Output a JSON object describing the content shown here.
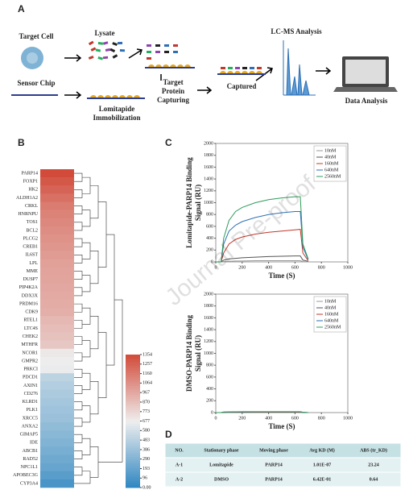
{
  "panel_a": {
    "letter": "A",
    "target_cell": "Target Cell",
    "lysate": "Lysate",
    "lcms": "LC-MS Analysis",
    "sensor_chip": "Sensor Chip",
    "immobilization": [
      "Lomitapide",
      "Immobilization"
    ],
    "capturing": [
      "Target",
      "Protein",
      "Capturing"
    ],
    "captured": "Captured",
    "data_analysis": "Data Analysis"
  },
  "panel_b": {
    "letter": "B",
    "heatmap": {
      "type": "heatmap",
      "genes": [
        "PARP14",
        "FOXP1",
        "HK2",
        "ALDH1A2",
        "CRKL",
        "HNRNPU",
        "TOS1",
        "BCL2",
        "PLCG2",
        "CREB1",
        "IL6ST",
        "LPL",
        "MME",
        "DUSP7",
        "PIP4K2A",
        "DDX3X",
        "PRDM16",
        "CDK9",
        "RTEL1",
        "LTC4S",
        "CHEK2",
        "MTHFR",
        "NCOR1",
        "GMPR2",
        "PRKCI",
        "PDCD1",
        "AXIN1",
        "CD276",
        "KLRD1",
        "PLK1",
        "XRCC5",
        "ANXA2",
        "GIMAP5",
        "IDE",
        "ABCB1",
        "RAD52",
        "NPC1L1",
        "APOBEC3G",
        "CYP3A4"
      ],
      "values": [
        1354,
        1300,
        1250,
        1200,
        1150,
        1120,
        1100,
        1080,
        1060,
        1040,
        1020,
        1000,
        990,
        980,
        970,
        960,
        950,
        940,
        900,
        880,
        860,
        840,
        700,
        680,
        660,
        500,
        470,
        440,
        420,
        400,
        380,
        350,
        320,
        290,
        260,
        230,
        200,
        150,
        96
      ],
      "clim": [
        0,
        1354
      ],
      "colorbar_ticks": [
        1354,
        1257,
        1160,
        1064,
        967,
        870,
        773,
        677,
        580,
        483,
        386,
        290,
        193,
        96,
        {
          "value": 0,
          "label": "0.00"
        }
      ]
    }
  },
  "panel_c": {
    "letter": "C",
    "charts": [
      {
        "type": "line",
        "ylabel": [
          "Lomitapide-PARP14 Binding",
          "Signal (RU)"
        ],
        "xlabel": "Time (S)",
        "xlim": [
          0,
          1000
        ],
        "xticks": [
          0,
          200,
          400,
          600,
          800,
          1000
        ],
        "ylim": [
          0,
          2000
        ],
        "yticks": [
          0,
          200,
          400,
          600,
          800,
          1000,
          1200,
          1400,
          1600,
          1800,
          2000
        ],
        "x": [
          0,
          40,
          60,
          100,
          150,
          200,
          300,
          400,
          500,
          600,
          640,
          660,
          700
        ],
        "series": [
          {
            "name": "10nM",
            "color": "#999999",
            "values": [
              0,
              0,
              5,
              10,
              15,
              15,
              20,
              20,
              20,
              20,
              20,
              5,
              0
            ]
          },
          {
            "name": "40nM",
            "color": "#555555",
            "values": [
              0,
              0,
              30,
              50,
              60,
              70,
              80,
              90,
              95,
              100,
              100,
              30,
              10
            ]
          },
          {
            "name": "160nM",
            "color": "#c0392b",
            "values": [
              0,
              0,
              150,
              300,
              380,
              420,
              470,
              500,
              520,
              540,
              550,
              150,
              20
            ]
          },
          {
            "name": "640nM",
            "color": "#2e6fb5",
            "values": [
              0,
              0,
              300,
              520,
              620,
              680,
              750,
              800,
              830,
              850,
              850,
              250,
              40
            ]
          },
          {
            "name": "2560nM",
            "color": "#2e9b5a",
            "values": [
              0,
              0,
              400,
              700,
              850,
              920,
              1000,
              1050,
              1080,
              1100,
              1100,
              300,
              50
            ]
          }
        ]
      },
      {
        "type": "line",
        "ylabel": [
          "DMSO-PARP14 Binding",
          "Signal (RU)"
        ],
        "xlabel": "Time (S)",
        "xlim": [
          0,
          1000
        ],
        "xticks": [
          0,
          200,
          400,
          600,
          800,
          1000
        ],
        "ylim": [
          0,
          2000
        ],
        "yticks": [
          0,
          200,
          400,
          600,
          800,
          1000,
          1200,
          1400,
          1600,
          1800,
          2000
        ],
        "x": [
          0,
          40,
          60,
          100,
          150,
          200,
          300,
          400,
          500,
          600,
          640,
          660,
          700
        ],
        "series": [
          {
            "name": "10nM",
            "color": "#999999",
            "values": [
              0,
              0,
              2,
              3,
              4,
              4,
              5,
              5,
              5,
              5,
              5,
              2,
              0
            ]
          },
          {
            "name": "40nM",
            "color": "#555555",
            "values": [
              0,
              0,
              4,
              5,
              6,
              6,
              7,
              7,
              7,
              7,
              7,
              3,
              0
            ]
          },
          {
            "name": "160nM",
            "color": "#c0392b",
            "values": [
              0,
              0,
              6,
              8,
              9,
              10,
              10,
              10,
              10,
              10,
              10,
              4,
              0
            ]
          },
          {
            "name": "640nM",
            "color": "#2e6fb5",
            "values": [
              0,
              0,
              8,
              10,
              12,
              12,
              13,
              13,
              13,
              13,
              13,
              5,
              0
            ]
          },
          {
            "name": "2560nM",
            "color": "#2e9b5a",
            "values": [
              0,
              0,
              10,
              12,
              14,
              15,
              15,
              15,
              15,
              15,
              15,
              6,
              0
            ]
          }
        ]
      }
    ]
  },
  "panel_d": {
    "letter": "D",
    "table": {
      "header": [
        "NO.",
        "Stationary phase",
        "Moving phase",
        "Avg KD (M)",
        "ABS (tr_KD)"
      ],
      "rows": [
        [
          "A-1",
          "Lomitapide",
          "PARP14",
          "1.01E-07",
          "23.24"
        ],
        [
          "A-2",
          "DMSO",
          "PARP14",
          "6.42E-01",
          "0.64"
        ]
      ]
    }
  },
  "watermark": "Journal Pre-proof"
}
